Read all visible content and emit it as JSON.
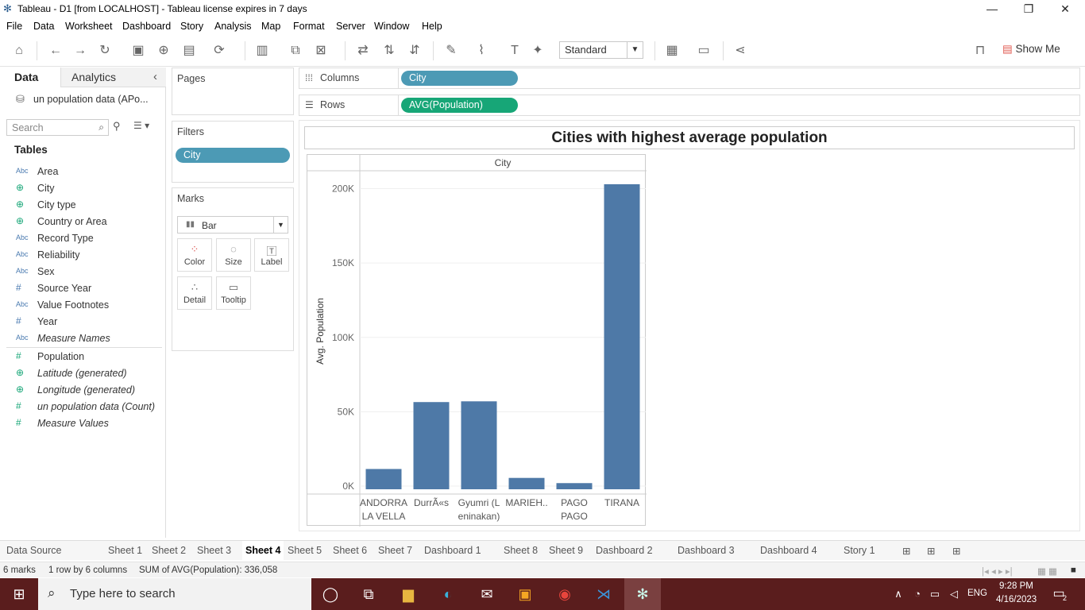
{
  "window": {
    "title": "Tableau - D1 [from LOCALHOST] - Tableau license expires in 7 days"
  },
  "menu": [
    "File",
    "Data",
    "Worksheet",
    "Dashboard",
    "Story",
    "Analysis",
    "Map",
    "Format",
    "Server",
    "Window",
    "Help"
  ],
  "toolbar": {
    "fit_mode": "Standard",
    "show_me": "Show Me"
  },
  "datapane": {
    "tab_data": "Data",
    "tab_analytics": "Analytics",
    "source": "un population data (APo...",
    "search_placeholder": "Search",
    "tables_header": "Tables",
    "fields": [
      {
        "icon": "Abc",
        "name": "Area",
        "italic": false,
        "type": "dim"
      },
      {
        "icon": "globe",
        "name": "City",
        "italic": false,
        "type": "geo"
      },
      {
        "icon": "globe",
        "name": "City type",
        "italic": false,
        "type": "geo"
      },
      {
        "icon": "globe",
        "name": "Country or Area",
        "italic": false,
        "type": "geo"
      },
      {
        "icon": "Abc",
        "name": "Record Type",
        "italic": false,
        "type": "dim"
      },
      {
        "icon": "Abc",
        "name": "Reliability",
        "italic": false,
        "type": "dim"
      },
      {
        "icon": "Abc",
        "name": "Sex",
        "italic": false,
        "type": "dim"
      },
      {
        "icon": "#",
        "name": "Source Year",
        "italic": false,
        "type": "dim"
      },
      {
        "icon": "Abc",
        "name": "Value Footnotes",
        "italic": false,
        "type": "dim"
      },
      {
        "icon": "#",
        "name": "Year",
        "italic": false,
        "type": "dim"
      },
      {
        "icon": "Abc",
        "name": "Measure Names",
        "italic": true,
        "type": "dim"
      },
      {
        "icon": "#",
        "name": "Population",
        "italic": false,
        "type": "mea"
      },
      {
        "icon": "globe",
        "name": "Latitude (generated)",
        "italic": true,
        "type": "geo"
      },
      {
        "icon": "globe",
        "name": "Longitude (generated)",
        "italic": true,
        "type": "geo"
      },
      {
        "icon": "#",
        "name": "un population data (Count)",
        "italic": true,
        "type": "mea"
      },
      {
        "icon": "#",
        "name": "Measure Values",
        "italic": true,
        "type": "mea"
      }
    ]
  },
  "shelves": {
    "pages_title": "Pages",
    "filters_title": "Filters",
    "filter_pill": "City",
    "marks_title": "Marks",
    "mark_type": "Bar",
    "mark_buttons": [
      "Color",
      "Size",
      "Label",
      "Detail",
      "Tooltip"
    ],
    "columns_label": "Columns",
    "columns_pill": "City",
    "rows_label": "Rows",
    "rows_pill": "AVG(Population)"
  },
  "chart_data": {
    "type": "bar",
    "title": "Cities with highest average population",
    "header": "City",
    "ylabel": "Avg. Population",
    "categories": [
      "ANDORRA LA VELLA",
      "DurrÃ«s",
      "Gyumri (Leninakan)",
      "MARIEH..",
      "PAGO PAGO",
      "TIRANA"
    ],
    "category_labels": [
      [
        "ANDORRA",
        "LA VELLA"
      ],
      [
        "DurrÃ«s"
      ],
      [
        "Gyumri (L",
        "eninakan)"
      ],
      [
        "MARIEH.."
      ],
      [
        "PAGO",
        "PAGO"
      ],
      [
        "TIRANA"
      ]
    ],
    "values": [
      11500,
      56500,
      57000,
      5500,
      2000,
      203000
    ],
    "ylim": [
      0,
      210000
    ],
    "yticks": [
      0,
      50000,
      100000,
      150000,
      200000
    ],
    "ytick_labels": [
      "0K",
      "50K",
      "100K",
      "150K",
      "200K"
    ],
    "bar_color": "#4e79a7",
    "grid": true
  },
  "sheet_tabs": [
    "Data Source",
    "Sheet 1",
    "Sheet 2",
    "Sheet 3",
    "Sheet 4",
    "Sheet 5",
    "Sheet 6",
    "Sheet 7",
    "Dashboard 1",
    "Sheet 8",
    "Sheet 9",
    "Dashboard 2",
    "Dashboard 3",
    "Dashboard 4",
    "Story 1"
  ],
  "active_tab": "Sheet 4",
  "status": {
    "marks": "6 marks",
    "rows_cols": "1 row by 6 columns",
    "sum": "SUM of AVG(Population): 336,058"
  },
  "taskbar": {
    "search_placeholder": "Type here to search",
    "lang": "ENG",
    "time": "9:28 PM",
    "date": "4/16/2023",
    "notif_count": "2"
  }
}
